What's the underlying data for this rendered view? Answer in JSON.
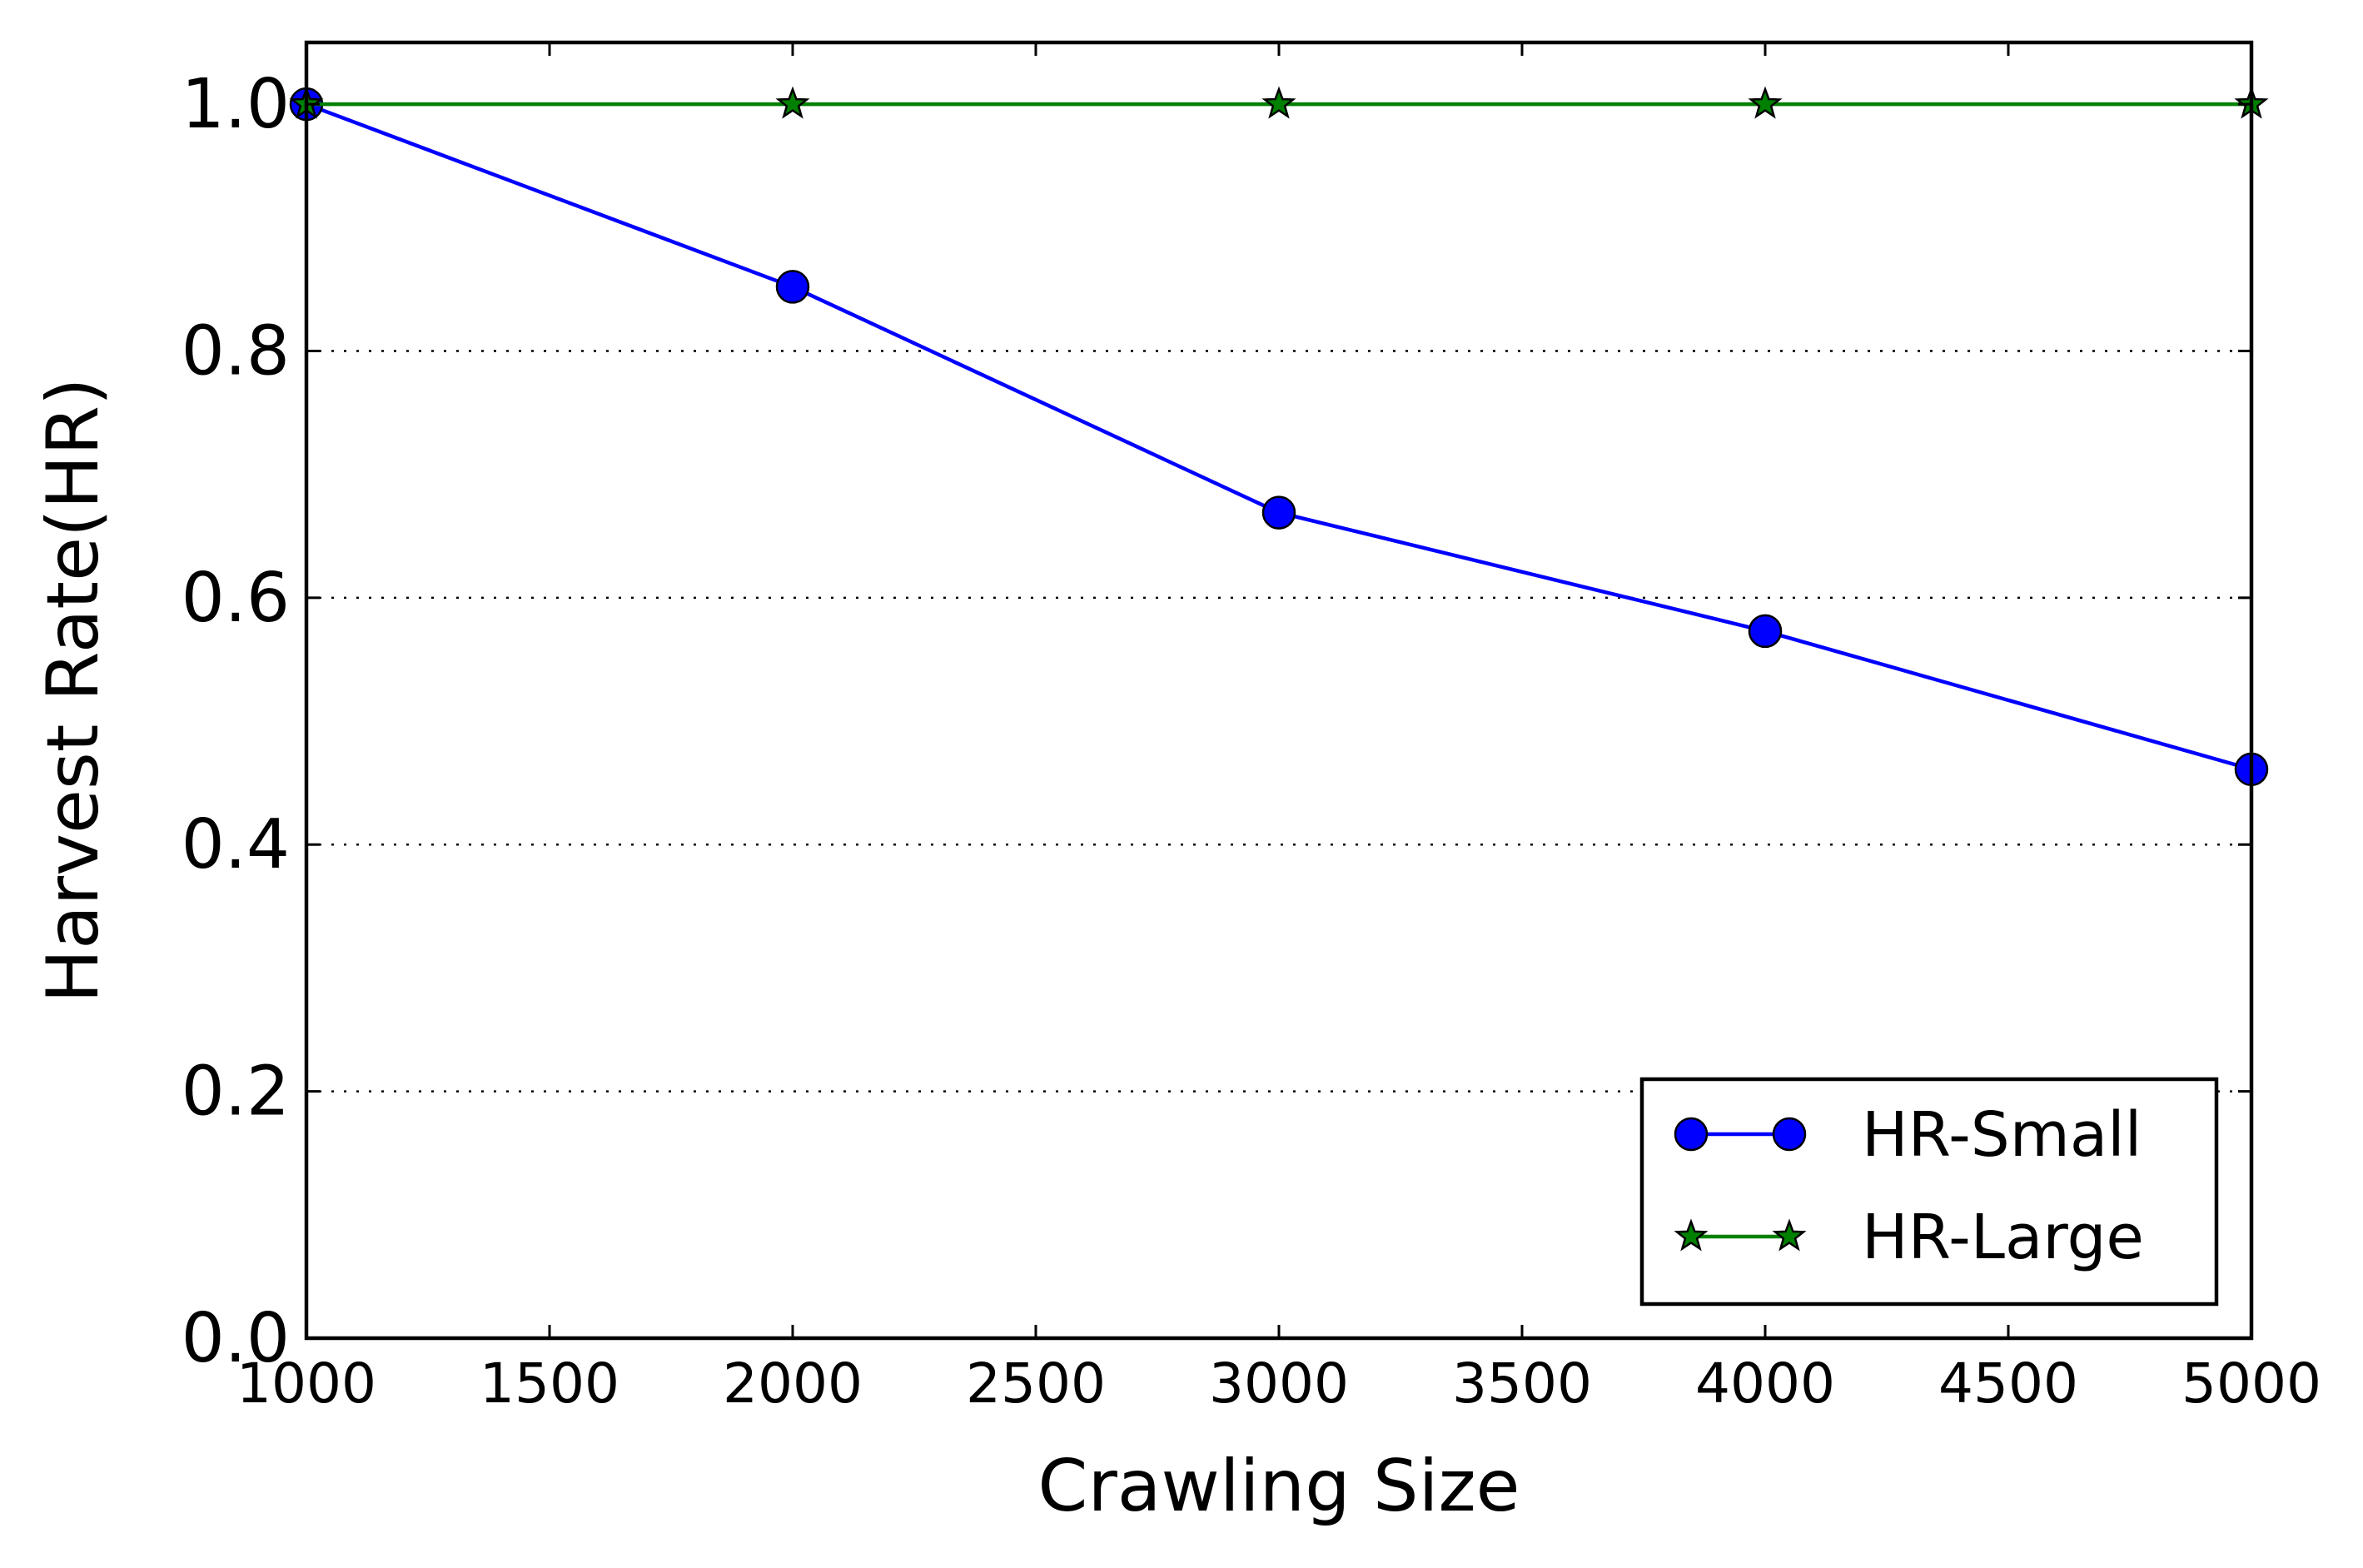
{
  "chart_data": {
    "type": "line",
    "title": "",
    "xlabel": "Crawling Size",
    "ylabel": "Harvest Rate(HR)",
    "xlim": [
      1000,
      5000
    ],
    "ylim": [
      0.0,
      1.05
    ],
    "x_ticks": [
      1000,
      1500,
      2000,
      2500,
      3000,
      3500,
      4000,
      4500,
      5000
    ],
    "y_ticks": [
      0.0,
      0.2,
      0.4,
      0.6,
      0.8,
      1.0
    ],
    "y_tick_labels": [
      "0.0",
      "0.2",
      "0.4",
      "0.6",
      "0.8",
      "1.0"
    ],
    "grid": "horizontal dotted",
    "legend_position": "lower-right",
    "x": [
      1000,
      2000,
      3000,
      4000,
      5000
    ],
    "series": [
      {
        "name": "HR-Small",
        "values": [
          1.0,
          0.852,
          0.669,
          0.573,
          0.461
        ],
        "color": "#0000ff",
        "marker": "circle"
      },
      {
        "name": "HR-Large",
        "values": [
          1.0,
          1.0,
          1.0,
          1.0,
          1.0
        ],
        "color": "#008000",
        "marker": "star"
      }
    ]
  }
}
